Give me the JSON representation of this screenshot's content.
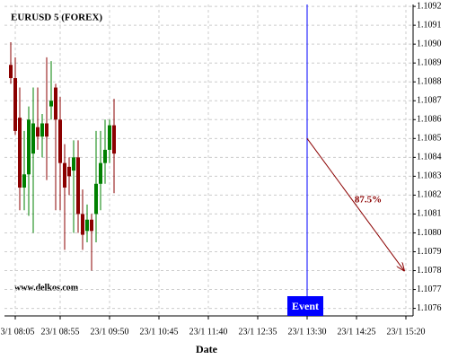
{
  "chart_data": {
    "type": "candlestick",
    "title": "EURUSD 5 (FOREX)",
    "x_label": "Date",
    "watermark": "www.delkos.com",
    "grid": true,
    "up_color": "#008000",
    "down_color": "#8b0000",
    "xlim": [
      -1.4,
      89.6
    ],
    "xticks": [
      {
        "value": 1,
        "label": "23/1 08:05"
      },
      {
        "value": 11,
        "label": "23/1 08:55"
      },
      {
        "value": 22,
        "label": "23/1 09:50"
      },
      {
        "value": 33,
        "label": "23/1 10:45"
      },
      {
        "value": 44,
        "label": "23/1 11:40"
      },
      {
        "value": 55,
        "label": "23/1 12:35"
      },
      {
        "value": 66,
        "label": "23/1 13:30"
      },
      {
        "value": 77,
        "label": "23/1 14:25"
      },
      {
        "value": 88,
        "label": "23/1 15:20"
      }
    ],
    "ylim": [
      1.10756,
      1.10921
    ],
    "yticks": [
      1.1076,
      1.1077,
      1.1078,
      1.1079,
      {
        "value": 1.108,
        "label": "1.1080"
      },
      1.1081,
      1.1082,
      1.1083,
      1.1084,
      1.1085,
      1.1086,
      1.1087,
      1.1088,
      1.1089,
      {
        "value": 1.109,
        "label": "1.1090"
      },
      1.1091,
      1.1092
    ],
    "x": [
      0,
      1,
      2,
      3,
      4,
      5,
      6,
      7,
      8,
      9,
      10,
      11,
      12,
      13,
      14,
      15,
      16,
      17,
      18,
      19,
      20,
      21,
      22,
      23
    ],
    "open": [
      1.10889,
      1.10882,
      1.10861,
      1.10824,
      1.10831,
      1.10842,
      1.10856,
      1.10851,
      1.10858,
      1.10867,
      1.10877,
      1.1086,
      1.10837,
      1.10835,
      1.10833,
      1.1084,
      1.1081,
      1.10801,
      1.10807,
      1.1081,
      1.10826,
      1.10837,
      1.10844,
      1.10857
    ],
    "high": [
      1.10901,
      1.10893,
      1.10877,
      1.10854,
      1.10867,
      1.10877,
      1.10877,
      1.10863,
      1.10893,
      1.10891,
      1.10879,
      1.10872,
      1.10847,
      1.1084,
      1.10849,
      1.10849,
      1.10823,
      1.10815,
      1.1081,
      1.10854,
      1.10854,
      1.1086,
      1.1086,
      1.10871
    ],
    "low": [
      1.10879,
      1.10852,
      1.10812,
      1.10812,
      1.10809,
      1.108,
      1.10844,
      1.1084,
      1.10828,
      1.1086,
      1.10812,
      1.10812,
      1.10791,
      1.1082,
      1.108,
      1.108,
      1.10791,
      1.10795,
      1.1078,
      1.10795,
      1.10812,
      1.10826,
      1.10837,
      1.10821
    ],
    "close": [
      1.10882,
      1.10854,
      1.10824,
      1.10831,
      1.1086,
      1.10858,
      1.10851,
      1.10858,
      1.10851,
      1.1087,
      1.1086,
      1.10837,
      1.10824,
      1.1083,
      1.1084,
      1.1081,
      1.10799,
      1.10807,
      1.10801,
      1.10826,
      1.10837,
      1.10844,
      1.10857,
      1.10842
    ],
    "event": {
      "x": 66,
      "label": "Event",
      "color": "#0000ff"
    },
    "forecast": {
      "x": [
        66,
        87.6
      ],
      "y": [
        1.1085,
        1.1078
      ],
      "label": "87.5%",
      "color": "#8b0000"
    }
  }
}
